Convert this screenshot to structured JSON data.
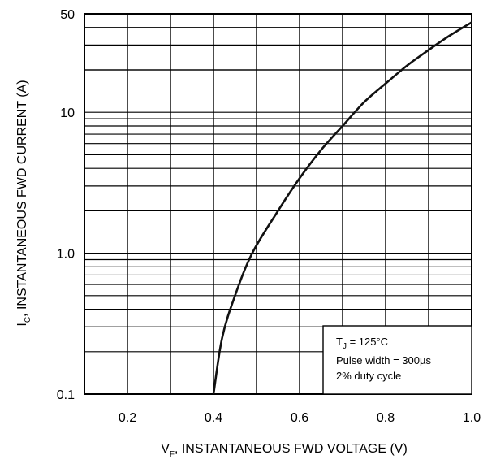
{
  "chart_data": {
    "type": "line",
    "xlabel": {
      "main": "V",
      "sub": "F",
      "rest": ", INSTANTANEOUS FWD VOLTAGE (V)"
    },
    "ylabel": {
      "main": "I",
      "sub": "C",
      "rest": ", INSTANTANEOUS FWD CURRENT (A)"
    },
    "xlim": [
      0.1,
      1.0
    ],
    "ylim": [
      0.1,
      50
    ],
    "yscale": "log",
    "grid": true,
    "x_ticks": [
      {
        "value": 0.2,
        "label": "0.2"
      },
      {
        "value": 0.4,
        "label": "0.4"
      },
      {
        "value": 0.6,
        "label": "0.6"
      },
      {
        "value": 0.8,
        "label": "0.8"
      },
      {
        "value": 1.0,
        "label": "1.0"
      }
    ],
    "y_ticks": [
      {
        "value": 0.1,
        "label": "0.1"
      },
      {
        "value": 1.0,
        "label": "1.0"
      },
      {
        "value": 10,
        "label": "10"
      },
      {
        "value": 50,
        "label": "50"
      }
    ],
    "series": [
      {
        "x": [
          0.4,
          0.42,
          0.45,
          0.49,
          0.55,
          0.6,
          0.65,
          0.7,
          0.75,
          0.8,
          0.85,
          0.9,
          0.95,
          1.0
        ],
        "y": [
          0.1,
          0.25,
          0.5,
          1.0,
          2.0,
          3.4,
          5.4,
          8.0,
          11.8,
          16.0,
          21.5,
          27.7,
          35.2,
          43.5
        ]
      }
    ],
    "annotation": {
      "tj_main": "T",
      "tj_sub": "J",
      "tj_rest": " = 125°C",
      "line2": "Pulse width = 300µs",
      "line3": "2% duty cycle"
    }
  }
}
